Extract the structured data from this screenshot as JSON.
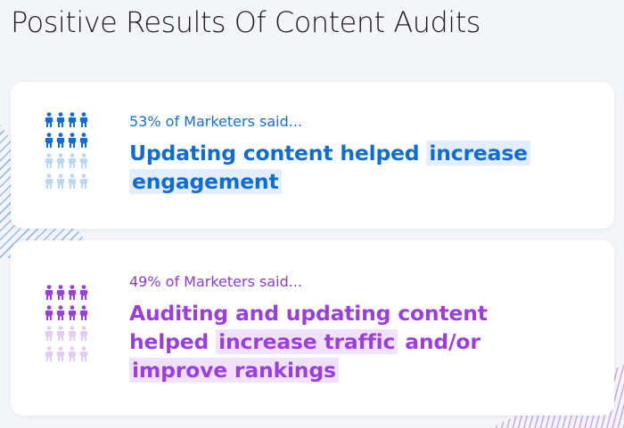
{
  "page": {
    "title": "Positive Results Of Content Audits"
  },
  "cards": [
    {
      "caption": "53% of Marketers said...",
      "headline": {
        "line1_plain": "Updating content helped ",
        "line1_highlight": "increase",
        "line2_highlight": "engagement"
      },
      "percent": 53,
      "color": "#0f6cd6",
      "light_color": "#bcd7f4",
      "icon": "people-icon"
    },
    {
      "caption": "49% of Marketers said...",
      "headline": {
        "line1_plain": "Auditing and updating content",
        "line2_plain_a": "helped ",
        "line2_highlight": "increase traffic",
        "line2_plain_b": " and/or",
        "line3_highlight": "improve rankings"
      },
      "percent": 49,
      "color": "#9a3ee0",
      "light_color": "#e2ccf6",
      "icon": "people-icon"
    }
  ]
}
